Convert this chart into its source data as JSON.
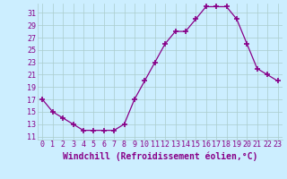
{
  "x": [
    0,
    1,
    2,
    3,
    4,
    5,
    6,
    7,
    8,
    9,
    10,
    11,
    12,
    13,
    14,
    15,
    16,
    17,
    18,
    19,
    20,
    21,
    22,
    23
  ],
  "y": [
    17,
    15,
    14,
    13,
    12,
    12,
    12,
    12,
    13,
    17,
    20,
    23,
    26,
    28,
    28,
    30,
    32,
    32,
    32,
    30,
    26,
    22,
    21,
    20
  ],
  "line_color": "#880088",
  "marker": "P",
  "marker_color": "#880088",
  "bg_color": "#cceeff",
  "grid_color": "#aacccc",
  "xlabel": "Windchill (Refroidissement éolien,°C)",
  "xlabel_color": "#880088",
  "xlabel_fontsize": 7,
  "tick_color": "#880088",
  "tick_fontsize": 6,
  "yticks": [
    11,
    13,
    15,
    17,
    19,
    21,
    23,
    25,
    27,
    29,
    31
  ],
  "xticks": [
    0,
    1,
    2,
    3,
    4,
    5,
    6,
    7,
    8,
    9,
    10,
    11,
    12,
    13,
    14,
    15,
    16,
    17,
    18,
    19,
    20,
    21,
    22,
    23
  ],
  "ylim": [
    10.5,
    32.5
  ],
  "xlim": [
    -0.5,
    23.5
  ]
}
